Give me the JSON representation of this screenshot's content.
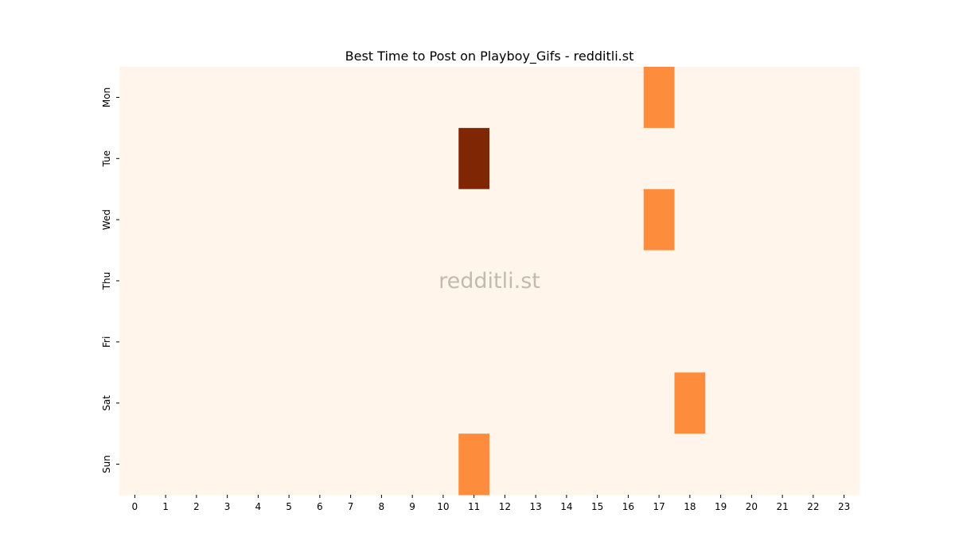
{
  "chart_data": {
    "type": "heatmap",
    "title": "Best Time to Post on Playboy_Gifs - redditli.st",
    "watermark": "redditli.st",
    "xlabel": "",
    "ylabel": "",
    "x_categories": [
      "0",
      "1",
      "2",
      "3",
      "4",
      "5",
      "6",
      "7",
      "8",
      "9",
      "10",
      "11",
      "12",
      "13",
      "14",
      "15",
      "16",
      "17",
      "18",
      "19",
      "20",
      "21",
      "22",
      "23"
    ],
    "y_categories": [
      "Mon",
      "Tue",
      "Wed",
      "Thu",
      "Fri",
      "Sat",
      "Sun"
    ],
    "colormap": "Oranges",
    "colors": {
      "low": "#fff5eb",
      "mid": "#fd8d3c",
      "high": "#7f2704"
    },
    "value_range": [
      0,
      2
    ],
    "values": [
      [
        0,
        0,
        0,
        0,
        0,
        0,
        0,
        0,
        0,
        0,
        0,
        0,
        0,
        0,
        0,
        0,
        0,
        1,
        0,
        0,
        0,
        0,
        0,
        0
      ],
      [
        0,
        0,
        0,
        0,
        0,
        0,
        0,
        0,
        0,
        0,
        0,
        2,
        0,
        0,
        0,
        0,
        0,
        0,
        0,
        0,
        0,
        0,
        0,
        0
      ],
      [
        0,
        0,
        0,
        0,
        0,
        0,
        0,
        0,
        0,
        0,
        0,
        0,
        0,
        0,
        0,
        0,
        0,
        1,
        0,
        0,
        0,
        0,
        0,
        0
      ],
      [
        0,
        0,
        0,
        0,
        0,
        0,
        0,
        0,
        0,
        0,
        0,
        0,
        0,
        0,
        0,
        0,
        0,
        0,
        0,
        0,
        0,
        0,
        0,
        0
      ],
      [
        0,
        0,
        0,
        0,
        0,
        0,
        0,
        0,
        0,
        0,
        0,
        0,
        0,
        0,
        0,
        0,
        0,
        0,
        0,
        0,
        0,
        0,
        0,
        0
      ],
      [
        0,
        0,
        0,
        0,
        0,
        0,
        0,
        0,
        0,
        0,
        0,
        0,
        0,
        0,
        0,
        0,
        0,
        0,
        1,
        0,
        0,
        0,
        0,
        0
      ],
      [
        0,
        0,
        0,
        0,
        0,
        0,
        0,
        0,
        0,
        0,
        0,
        1,
        0,
        0,
        0,
        0,
        0,
        0,
        0,
        0,
        0,
        0,
        0,
        0
      ]
    ]
  }
}
